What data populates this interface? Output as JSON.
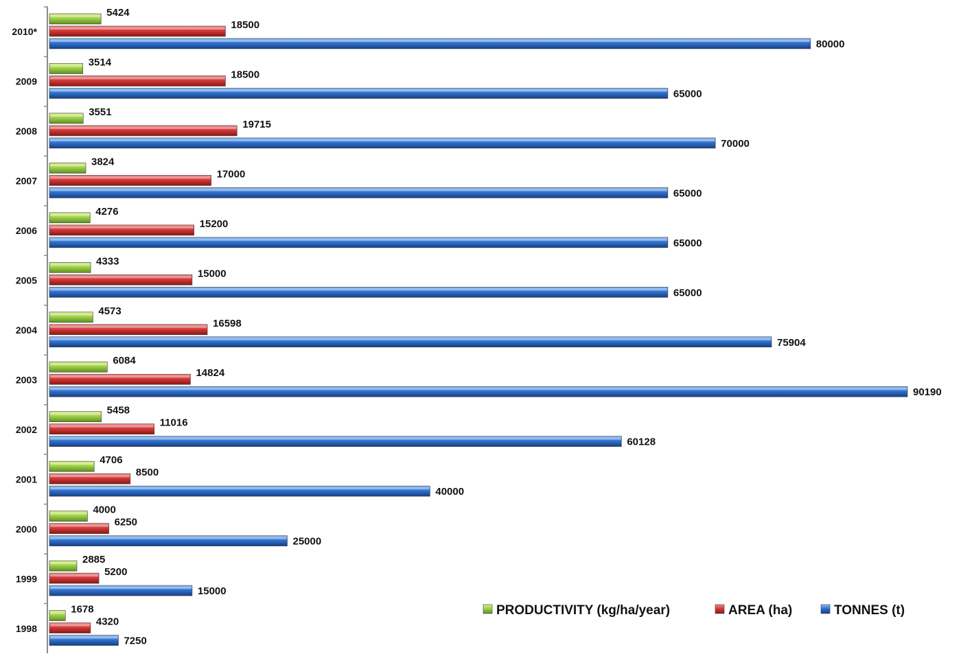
{
  "chart_data": {
    "type": "bar",
    "orientation": "horizontal",
    "title": "",
    "xlabel": "",
    "ylabel": "",
    "categories": [
      "2010*",
      "2009",
      "2008",
      "2007",
      "2006",
      "2005",
      "2004",
      "2003",
      "2002",
      "2001",
      "2000",
      "1999",
      "1998"
    ],
    "series": [
      {
        "name": "PRODUCTIVITY (kg/ha/year)",
        "color": "#8cc63f",
        "values": [
          5424,
          3514,
          3551,
          3824,
          4276,
          4333,
          4573,
          6084,
          5458,
          4706,
          4000,
          2885,
          1678
        ]
      },
      {
        "name": "AREA (ha)",
        "color": "#d23a3a",
        "values": [
          18500,
          18500,
          19715,
          17000,
          15200,
          15000,
          16598,
          14824,
          11016,
          8500,
          6250,
          5200,
          4320
        ]
      },
      {
        "name": "TONNES (t)",
        "color": "#2f72cf",
        "values": [
          80000,
          65000,
          70000,
          65000,
          65000,
          65000,
          75904,
          90190,
          60128,
          40000,
          25000,
          15000,
          7250
        ]
      }
    ],
    "xlim": [
      0,
      90190
    ],
    "grid": false,
    "legend_position": "bottom-right"
  }
}
